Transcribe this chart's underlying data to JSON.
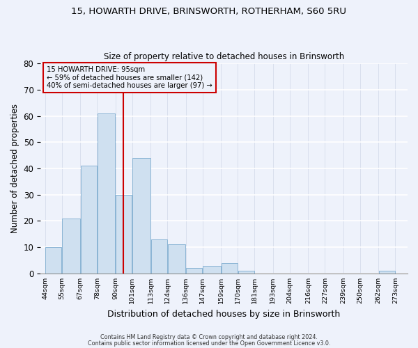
{
  "title_line1": "15, HOWARTH DRIVE, BRINSWORTH, ROTHERHAM, S60 5RU",
  "title_line2": "Size of property relative to detached houses in Brinsworth",
  "xlabel": "Distribution of detached houses by size in Brinsworth",
  "ylabel": "Number of detached properties",
  "bar_edges": [
    44,
    55,
    67,
    78,
    90,
    101,
    113,
    124,
    136,
    147,
    159,
    170,
    181,
    193,
    204,
    216,
    227,
    239,
    250,
    262,
    273
  ],
  "bar_heights": [
    10,
    21,
    41,
    61,
    30,
    44,
    13,
    11,
    2,
    3,
    4,
    1,
    0,
    0,
    0,
    0,
    0,
    0,
    0,
    1
  ],
  "bar_color": "#cfe0f0",
  "bar_edge_color": "#8ab4d4",
  "vline_x": 95,
  "vline_color": "#cc0000",
  "ylim": [
    0,
    80
  ],
  "annotation_title": "15 HOWARTH DRIVE: 95sqm",
  "annotation_line1": "← 59% of detached houses are smaller (142)",
  "annotation_line2": "40% of semi-detached houses are larger (97) →",
  "footer_line1": "Contains HM Land Registry data © Crown copyright and database right 2024.",
  "footer_line2": "Contains public sector information licensed under the Open Government Licence v3.0.",
  "tick_labels": [
    "44sqm",
    "55sqm",
    "67sqm",
    "78sqm",
    "90sqm",
    "101sqm",
    "113sqm",
    "124sqm",
    "136sqm",
    "147sqm",
    "159sqm",
    "170sqm",
    "181sqm",
    "193sqm",
    "204sqm",
    "216sqm",
    "227sqm",
    "239sqm",
    "250sqm",
    "262sqm",
    "273sqm"
  ],
  "background_color": "#eef2fb"
}
